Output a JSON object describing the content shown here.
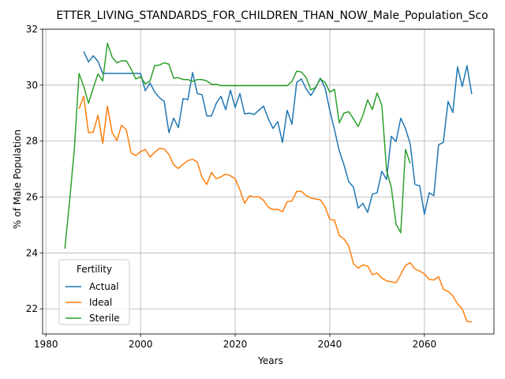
{
  "chart_data": {
    "type": "line",
    "title": "ETTER_LIVING_STANDARDS_FOR_CHILDREN_THAN_NOW_Male_Population_Sco",
    "xlabel": "Years",
    "ylabel": "% of Male Population",
    "xlim": [
      1979.3,
      2074.7
    ],
    "ylim": [
      21.1,
      32.0
    ],
    "xticks": [
      1980,
      2000,
      2020,
      2040,
      2060
    ],
    "yticks": [
      22,
      24,
      26,
      28,
      30,
      32
    ],
    "grid": true,
    "legend": {
      "title": "Fertility",
      "position": "lower-left"
    },
    "series": [
      {
        "name": "Actual",
        "color": "#1f77b4",
        "points": [
          [
            1988,
            31.2
          ],
          [
            1989,
            30.83
          ],
          [
            1990,
            31.05
          ],
          [
            1991,
            30.85
          ],
          [
            1992,
            30.42
          ],
          [
            1993,
            30.42
          ],
          [
            1994,
            30.42
          ],
          [
            1995,
            30.42
          ],
          [
            1996,
            30.42
          ],
          [
            1997,
            30.42
          ],
          [
            1998,
            30.42
          ],
          [
            1999,
            30.42
          ],
          [
            2000,
            30.42
          ],
          [
            2001,
            29.8
          ],
          [
            2002,
            30.08
          ],
          [
            2003,
            29.75
          ],
          [
            2004,
            29.55
          ],
          [
            2005,
            29.42
          ],
          [
            2006,
            28.3
          ],
          [
            2007,
            28.82
          ],
          [
            2008,
            28.48
          ],
          [
            2009,
            29.52
          ],
          [
            2010,
            29.48
          ],
          [
            2011,
            30.45
          ],
          [
            2012,
            29.7
          ],
          [
            2013,
            29.66
          ],
          [
            2014,
            28.9
          ],
          [
            2015,
            28.9
          ],
          [
            2016,
            29.35
          ],
          [
            2017,
            29.6
          ],
          [
            2018,
            29.12
          ],
          [
            2019,
            29.82
          ],
          [
            2020,
            29.2
          ],
          [
            2021,
            29.7
          ],
          [
            2022,
            28.97
          ],
          [
            2023,
            29.0
          ],
          [
            2024,
            28.95
          ],
          [
            2025,
            29.1
          ],
          [
            2026,
            29.25
          ],
          [
            2027,
            28.8
          ],
          [
            2028,
            28.45
          ],
          [
            2029,
            28.7
          ],
          [
            2030,
            27.95
          ],
          [
            2031,
            29.1
          ],
          [
            2032,
            28.6
          ],
          [
            2033,
            30.1
          ],
          [
            2034,
            30.22
          ],
          [
            2035,
            29.87
          ],
          [
            2036,
            29.63
          ],
          [
            2037,
            29.9
          ],
          [
            2038,
            30.25
          ],
          [
            2039,
            29.9
          ],
          [
            2040,
            29.1
          ],
          [
            2041,
            28.4
          ],
          [
            2042,
            27.65
          ],
          [
            2043,
            27.15
          ],
          [
            2044,
            26.55
          ],
          [
            2045,
            26.35
          ],
          [
            2046,
            25.6
          ],
          [
            2047,
            25.77
          ],
          [
            2048,
            25.45
          ],
          [
            2049,
            26.1
          ],
          [
            2050,
            26.15
          ],
          [
            2051,
            26.92
          ],
          [
            2052,
            26.62
          ],
          [
            2053,
            28.17
          ],
          [
            2054,
            27.98
          ],
          [
            2055,
            28.82
          ],
          [
            2056,
            28.45
          ],
          [
            2057,
            27.9
          ],
          [
            2058,
            26.45
          ],
          [
            2059,
            26.4
          ],
          [
            2060,
            25.38
          ],
          [
            2061,
            26.15
          ],
          [
            2062,
            26.05
          ],
          [
            2063,
            27.87
          ],
          [
            2064,
            27.95
          ],
          [
            2065,
            29.42
          ],
          [
            2066,
            29.02
          ],
          [
            2067,
            30.65
          ],
          [
            2068,
            29.95
          ],
          [
            2069,
            30.7
          ],
          [
            2070,
            29.68
          ]
        ]
      },
      {
        "name": "Ideal",
        "color": "#ff7f0e",
        "points": [
          [
            1987,
            29.15
          ],
          [
            1988,
            29.6
          ],
          [
            1989,
            28.3
          ],
          [
            1990,
            28.32
          ],
          [
            1991,
            28.92
          ],
          [
            1992,
            27.92
          ],
          [
            1993,
            29.25
          ],
          [
            1994,
            28.3
          ],
          [
            1995,
            28.02
          ],
          [
            1996,
            28.57
          ],
          [
            1997,
            28.4
          ],
          [
            1998,
            27.58
          ],
          [
            1999,
            27.48
          ],
          [
            2000,
            27.62
          ],
          [
            2001,
            27.7
          ],
          [
            2002,
            27.43
          ],
          [
            2003,
            27.6
          ],
          [
            2004,
            27.74
          ],
          [
            2005,
            27.72
          ],
          [
            2006,
            27.52
          ],
          [
            2007,
            27.15
          ],
          [
            2008,
            27.02
          ],
          [
            2009,
            27.17
          ],
          [
            2010,
            27.3
          ],
          [
            2011,
            27.35
          ],
          [
            2012,
            27.25
          ],
          [
            2013,
            26.7
          ],
          [
            2014,
            26.45
          ],
          [
            2015,
            26.88
          ],
          [
            2016,
            26.65
          ],
          [
            2017,
            26.72
          ],
          [
            2018,
            26.82
          ],
          [
            2019,
            26.76
          ],
          [
            2020,
            26.65
          ],
          [
            2021,
            26.25
          ],
          [
            2022,
            25.77
          ],
          [
            2023,
            26.04
          ],
          [
            2024,
            26.0
          ],
          [
            2025,
            26.01
          ],
          [
            2026,
            25.88
          ],
          [
            2027,
            25.63
          ],
          [
            2028,
            25.55
          ],
          [
            2029,
            25.56
          ],
          [
            2030,
            25.47
          ],
          [
            2031,
            25.83
          ],
          [
            2032,
            25.86
          ],
          [
            2033,
            26.2
          ],
          [
            2034,
            26.2
          ],
          [
            2035,
            26.05
          ],
          [
            2036,
            25.96
          ],
          [
            2037,
            25.93
          ],
          [
            2038,
            25.9
          ],
          [
            2039,
            25.65
          ],
          [
            2040,
            25.2
          ],
          [
            2041,
            25.17
          ],
          [
            2042,
            24.62
          ],
          [
            2043,
            24.5
          ],
          [
            2044,
            24.25
          ],
          [
            2045,
            23.62
          ],
          [
            2046,
            23.45
          ],
          [
            2047,
            23.57
          ],
          [
            2048,
            23.53
          ],
          [
            2049,
            23.22
          ],
          [
            2050,
            23.28
          ],
          [
            2051,
            23.1
          ],
          [
            2052,
            23.0
          ],
          [
            2053,
            22.97
          ],
          [
            2054,
            22.93
          ],
          [
            2055,
            23.23
          ],
          [
            2056,
            23.55
          ],
          [
            2057,
            23.65
          ],
          [
            2058,
            23.42
          ],
          [
            2059,
            23.35
          ],
          [
            2060,
            23.25
          ],
          [
            2061,
            23.05
          ],
          [
            2062,
            23.03
          ],
          [
            2063,
            23.15
          ],
          [
            2064,
            22.7
          ],
          [
            2065,
            22.62
          ],
          [
            2066,
            22.47
          ],
          [
            2067,
            22.18
          ],
          [
            2068,
            22.0
          ],
          [
            2069,
            21.55
          ],
          [
            2070,
            21.53
          ]
        ]
      },
      {
        "name": "Sterile",
        "color": "#2ca02c",
        "points": [
          [
            1984,
            24.15
          ],
          [
            1985,
            25.85
          ],
          [
            1986,
            27.7
          ],
          [
            1987,
            30.42
          ],
          [
            1988,
            29.95
          ],
          [
            1989,
            29.35
          ],
          [
            1990,
            29.9
          ],
          [
            1991,
            30.4
          ],
          [
            1992,
            30.15
          ],
          [
            1993,
            31.5
          ],
          [
            1994,
            31.0
          ],
          [
            1995,
            30.8
          ],
          [
            1996,
            30.87
          ],
          [
            1997,
            30.87
          ],
          [
            1998,
            30.58
          ],
          [
            1999,
            30.22
          ],
          [
            2000,
            30.3
          ],
          [
            2001,
            30.05
          ],
          [
            2002,
            30.15
          ],
          [
            2003,
            30.7
          ],
          [
            2004,
            30.72
          ],
          [
            2005,
            30.8
          ],
          [
            2006,
            30.75
          ],
          [
            2007,
            30.25
          ],
          [
            2008,
            30.27
          ],
          [
            2009,
            30.2
          ],
          [
            2010,
            30.2
          ],
          [
            2011,
            30.13
          ],
          [
            2012,
            30.2
          ],
          [
            2013,
            30.2
          ],
          [
            2014,
            30.15
          ],
          [
            2015,
            30.03
          ],
          [
            2016,
            30.03
          ],
          [
            2017,
            29.98
          ],
          [
            2018,
            29.98
          ],
          [
            2019,
            29.98
          ],
          [
            2020,
            29.98
          ],
          [
            2021,
            29.98
          ],
          [
            2022,
            29.98
          ],
          [
            2023,
            29.98
          ],
          [
            2024,
            29.98
          ],
          [
            2025,
            29.98
          ],
          [
            2026,
            29.98
          ],
          [
            2027,
            29.98
          ],
          [
            2028,
            29.98
          ],
          [
            2029,
            29.98
          ],
          [
            2030,
            29.98
          ],
          [
            2031,
            29.98
          ],
          [
            2032,
            30.13
          ],
          [
            2033,
            30.5
          ],
          [
            2034,
            30.47
          ],
          [
            2035,
            30.27
          ],
          [
            2036,
            29.83
          ],
          [
            2037,
            29.92
          ],
          [
            2038,
            30.22
          ],
          [
            2039,
            30.1
          ],
          [
            2040,
            29.75
          ],
          [
            2041,
            29.85
          ],
          [
            2042,
            28.65
          ],
          [
            2043,
            29.0
          ],
          [
            2044,
            29.05
          ],
          [
            2045,
            28.8
          ],
          [
            2046,
            28.52
          ],
          [
            2047,
            28.92
          ],
          [
            2048,
            29.47
          ],
          [
            2049,
            29.13
          ],
          [
            2050,
            29.72
          ],
          [
            2051,
            29.28
          ],
          [
            2052,
            26.95
          ],
          [
            2053,
            26.35
          ],
          [
            2054,
            25.03
          ],
          [
            2055,
            24.72
          ],
          [
            2056,
            27.7
          ],
          [
            2057,
            27.2
          ]
        ]
      }
    ]
  }
}
